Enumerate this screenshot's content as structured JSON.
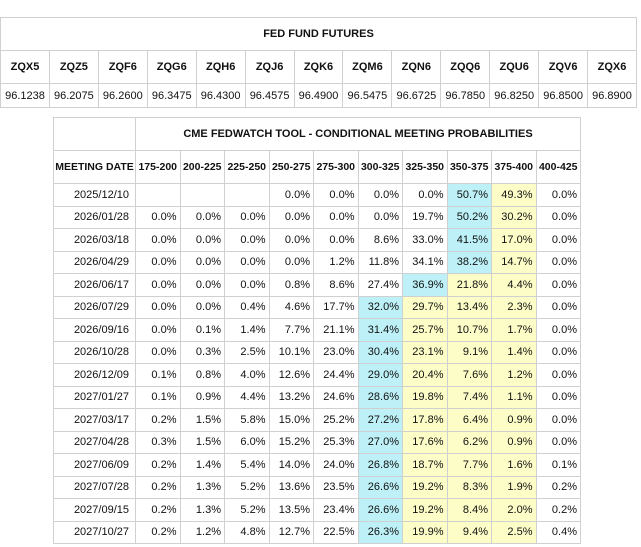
{
  "futures": {
    "title": "FED FUND FUTURES",
    "codes": [
      "ZQX5",
      "ZQZ5",
      "ZQF6",
      "ZQG6",
      "ZQH6",
      "ZQJ6",
      "ZQK6",
      "ZQM6",
      "ZQN6",
      "ZQQ6",
      "ZQU6",
      "ZQV6",
      "ZQX6"
    ],
    "prices": [
      "96.1238",
      "96.2075",
      "96.2600",
      "96.3475",
      "96.4300",
      "96.4575",
      "96.4900",
      "96.5475",
      "96.6725",
      "96.7850",
      "96.8250",
      "96.8500",
      "96.8900"
    ]
  },
  "fedwatch": {
    "title": "CME FEDWATCH TOOL - CONDITIONAL MEETING PROBABILITIES",
    "date_header": "MEETING DATE",
    "ranges": [
      "175-200",
      "200-225",
      "225-250",
      "250-275",
      "275-300",
      "300-325",
      "325-350",
      "350-375",
      "375-400",
      "400-425"
    ],
    "highlight_colors": {
      "max": "#bdf1f7",
      "between": "#fdfdc8"
    },
    "rows": [
      {
        "date": "2025/12/10",
        "cells": [
          null,
          null,
          null,
          "0.0%",
          "0.0%",
          "0.0%",
          "0.0%",
          "50.7%",
          "49.3%",
          "0.0%"
        ]
      },
      {
        "date": "2026/01/28",
        "cells": [
          "0.0%",
          "0.0%",
          "0.0%",
          "0.0%",
          "0.0%",
          "0.0%",
          "19.7%",
          "50.2%",
          "30.2%",
          "0.0%"
        ]
      },
      {
        "date": "2026/03/18",
        "cells": [
          "0.0%",
          "0.0%",
          "0.0%",
          "0.0%",
          "0.0%",
          "8.6%",
          "33.0%",
          "41.5%",
          "17.0%",
          "0.0%"
        ]
      },
      {
        "date": "2026/04/29",
        "cells": [
          "0.0%",
          "0.0%",
          "0.0%",
          "0.0%",
          "1.2%",
          "11.8%",
          "34.1%",
          "38.2%",
          "14.7%",
          "0.0%"
        ]
      },
      {
        "date": "2026/06/17",
        "cells": [
          "0.0%",
          "0.0%",
          "0.0%",
          "0.8%",
          "8.6%",
          "27.4%",
          "36.9%",
          "21.8%",
          "4.4%",
          "0.0%"
        ]
      },
      {
        "date": "2026/07/29",
        "cells": [
          "0.0%",
          "0.0%",
          "0.4%",
          "4.6%",
          "17.7%",
          "32.0%",
          "29.7%",
          "13.4%",
          "2.3%",
          "0.0%"
        ]
      },
      {
        "date": "2026/09/16",
        "cells": [
          "0.0%",
          "0.1%",
          "1.4%",
          "7.7%",
          "21.1%",
          "31.4%",
          "25.7%",
          "10.7%",
          "1.7%",
          "0.0%"
        ]
      },
      {
        "date": "2026/10/28",
        "cells": [
          "0.0%",
          "0.3%",
          "2.5%",
          "10.1%",
          "23.0%",
          "30.4%",
          "23.1%",
          "9.1%",
          "1.4%",
          "0.0%"
        ]
      },
      {
        "date": "2026/12/09",
        "cells": [
          "0.1%",
          "0.8%",
          "4.0%",
          "12.6%",
          "24.4%",
          "29.0%",
          "20.4%",
          "7.6%",
          "1.2%",
          "0.0%"
        ]
      },
      {
        "date": "2027/01/27",
        "cells": [
          "0.1%",
          "0.9%",
          "4.4%",
          "13.2%",
          "24.6%",
          "28.6%",
          "19.8%",
          "7.4%",
          "1.1%",
          "0.0%"
        ]
      },
      {
        "date": "2027/03/17",
        "cells": [
          "0.2%",
          "1.5%",
          "5.8%",
          "15.0%",
          "25.2%",
          "27.2%",
          "17.8%",
          "6.4%",
          "0.9%",
          "0.0%"
        ]
      },
      {
        "date": "2027/04/28",
        "cells": [
          "0.3%",
          "1.5%",
          "6.0%",
          "15.2%",
          "25.3%",
          "27.0%",
          "17.6%",
          "6.2%",
          "0.9%",
          "0.0%"
        ]
      },
      {
        "date": "2027/06/09",
        "cells": [
          "0.2%",
          "1.4%",
          "5.4%",
          "14.0%",
          "24.0%",
          "26.8%",
          "18.7%",
          "7.7%",
          "1.6%",
          "0.1%"
        ]
      },
      {
        "date": "2027/07/28",
        "cells": [
          "0.2%",
          "1.3%",
          "5.2%",
          "13.6%",
          "23.5%",
          "26.6%",
          "19.2%",
          "8.3%",
          "1.9%",
          "0.2%"
        ]
      },
      {
        "date": "2027/09/15",
        "cells": [
          "0.2%",
          "1.3%",
          "5.2%",
          "13.5%",
          "23.4%",
          "26.6%",
          "19.2%",
          "8.4%",
          "2.0%",
          "0.2%"
        ]
      },
      {
        "date": "2027/10/27",
        "cells": [
          "0.2%",
          "1.2%",
          "4.8%",
          "12.7%",
          "22.5%",
          "26.3%",
          "19.9%",
          "9.4%",
          "2.5%",
          "0.4%"
        ]
      }
    ]
  }
}
